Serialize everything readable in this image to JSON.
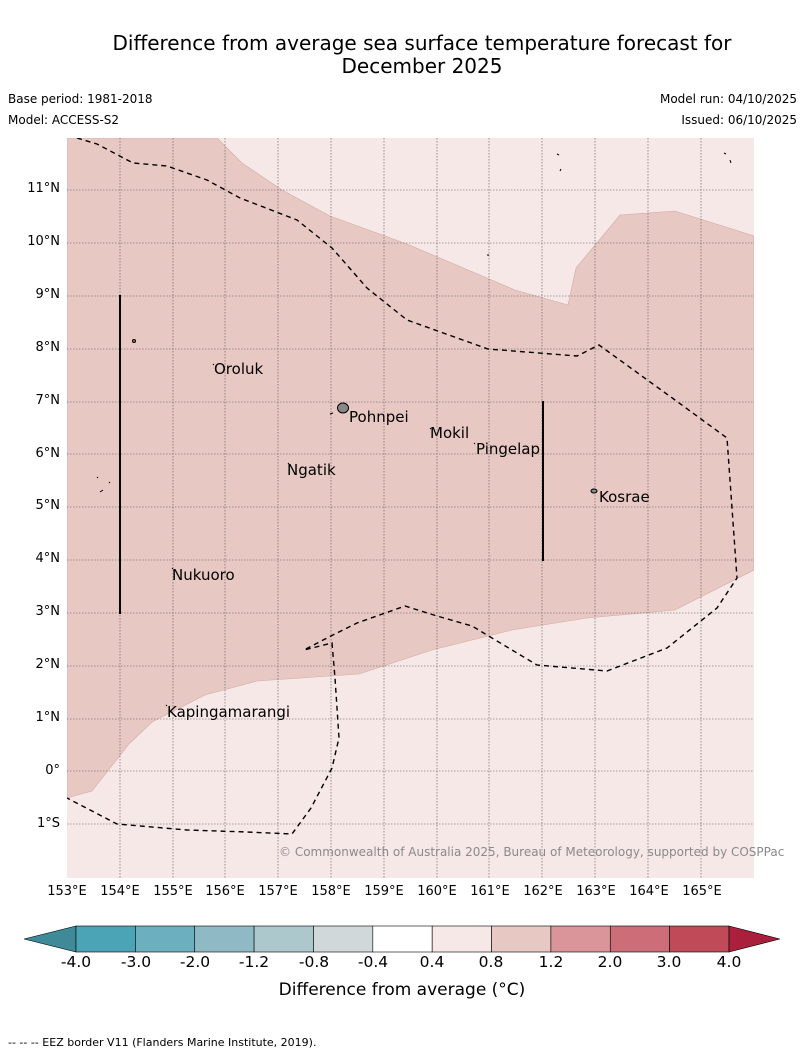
{
  "title_line1": "Difference from average sea surface temperature forecast for",
  "title_line2": "December 2025",
  "base_period": "Base period: 1981-2018",
  "model": "Model: ACCESS-S2",
  "model_run": "Model run: 04/10/2025",
  "issued": "Issued: 06/10/2025",
  "lat_labels": [
    "11°N",
    "10°N",
    "9°N",
    "8°N",
    "7°N",
    "6°N",
    "5°N",
    "4°N",
    "3°N",
    "2°N",
    "1°N",
    "0°",
    "1°S"
  ],
  "lon_labels": [
    "153°E",
    "154°E",
    "155°E",
    "156°E",
    "157°E",
    "158°E",
    "159°E",
    "160°E",
    "161°E",
    "162°E",
    "163°E",
    "164°E",
    "165°E"
  ],
  "places": [
    "Oroluk",
    "Pohnpei",
    "Mokil",
    "Pingelap",
    "Ngatik",
    "Kosrae",
    "Nukuoro",
    "Kapingamarangi"
  ],
  "copyright": "© Commonwealth of Australia 2025, Bureau of Meteorology, supported by COSPPac",
  "colorbar": {
    "ticks": [
      "-4.0",
      "-3.0",
      "-2.0",
      "-1.2",
      "-0.8",
      "-0.4",
      "0.4",
      "0.8",
      "1.2",
      "2.0",
      "3.0",
      "4.0"
    ],
    "title": "Difference from average (°C)",
    "colors": [
      "#3f8a99",
      "#4aa4b5",
      "#6cb0c0",
      "#8fb9c5",
      "#acc8cc",
      "#d0d8d9",
      "#ffffff",
      "#f5e8e7",
      "#e8c8c3",
      "#d9959a",
      "#cd6d77",
      "#c04a58",
      "#aa1f3c"
    ]
  },
  "legend_footnote": "--  --  -- EEZ border V11 (Flanders Marine Institute, 2019).",
  "shading": {
    "map_background": "#f5e8e7",
    "warm_region": "#e8c8c3"
  }
}
